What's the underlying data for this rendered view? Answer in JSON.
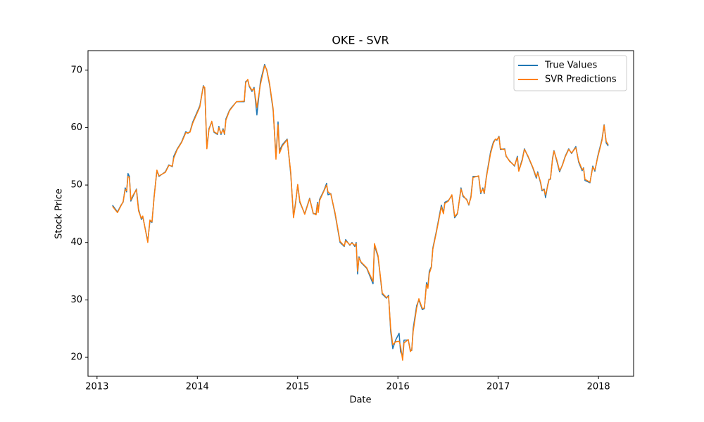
{
  "chart_data": {
    "type": "line",
    "title": "OKE - SVR",
    "xlabel": "Date",
    "ylabel": "Stock Price",
    "x": [
      2013.154,
      2013.204,
      2013.239,
      2013.26,
      2013.281,
      2013.295,
      2013.309,
      2013.323,
      2013.337,
      2013.358,
      2013.393,
      2013.414,
      2013.442,
      2013.456,
      2013.506,
      2013.527,
      2013.548,
      2013.569,
      2013.597,
      2013.618,
      2013.681,
      2013.716,
      2013.751,
      2013.765,
      2013.8,
      2013.843,
      2013.885,
      2013.906,
      2013.927,
      2013.955,
      2014.025,
      2014.06,
      2014.074,
      2014.095,
      2014.116,
      2014.144,
      2014.166,
      2014.201,
      2014.215,
      2014.236,
      2014.257,
      2014.271,
      2014.285,
      2014.32,
      2014.341,
      2014.39,
      2014.468,
      2014.482,
      2014.503,
      2014.517,
      2014.545,
      2014.566,
      2014.594,
      2014.629,
      2014.671,
      2014.692,
      2014.72,
      2014.756,
      2014.784,
      2014.805,
      2014.819,
      2014.847,
      2014.896,
      2014.931,
      2014.959,
      2014.98,
      2015.001,
      2015.022,
      2015.071,
      2015.12,
      2015.156,
      2015.184,
      2015.198,
      2015.205,
      2015.219,
      2015.261,
      2015.289,
      2015.303,
      2015.331,
      2015.373,
      2015.423,
      2015.465,
      2015.479,
      2015.521,
      2015.542,
      2015.57,
      2015.584,
      2015.598,
      2015.612,
      2015.633,
      2015.689,
      2015.752,
      2015.766,
      2015.802,
      2015.844,
      2015.886,
      2015.907,
      2015.928,
      2015.949,
      2015.977,
      2016.012,
      2016.026,
      2016.047,
      2016.061,
      2016.103,
      2016.124,
      2016.138,
      2016.152,
      2016.187,
      2016.209,
      2016.243,
      2016.264,
      2016.285,
      2016.299,
      2016.313,
      2016.334,
      2016.348,
      2016.384,
      2016.433,
      2016.454,
      2016.468,
      2016.503,
      2016.538,
      2016.566,
      2016.594,
      2016.629,
      2016.65,
      2016.686,
      2016.707,
      2016.728,
      2016.749,
      2016.805,
      2016.826,
      2016.847,
      2016.861,
      2016.882,
      2016.924,
      2016.952,
      2016.973,
      2016.987,
      2017.008,
      2017.022,
      2017.065,
      2017.079,
      2017.114,
      2017.163,
      2017.191,
      2017.205,
      2017.24,
      2017.261,
      2017.296,
      2017.345,
      2017.38,
      2017.394,
      2017.423,
      2017.437,
      2017.458,
      2017.472,
      2017.493,
      2017.507,
      2017.521,
      2017.542,
      2017.556,
      2017.584,
      2017.612,
      2017.64,
      2017.668,
      2017.703,
      2017.731,
      2017.774,
      2017.802,
      2017.837,
      2017.851,
      2017.865,
      2017.915,
      2017.943,
      2017.964,
      2017.992,
      2018.035,
      2018.056,
      2018.077,
      2018.098
    ],
    "series": [
      {
        "name": "True Values",
        "color": "#1f77b4",
        "values": [
          46.5,
          45.3,
          46.5,
          47,
          49.5,
          48.8,
          52,
          51.5,
          47.2,
          48,
          49.3,
          45.8,
          44,
          44.5,
          40.2,
          43.7,
          43.5,
          48,
          52.5,
          51.5,
          52.3,
          53.5,
          53.2,
          55,
          56.3,
          57.5,
          59.3,
          59,
          59.3,
          61,
          63.8,
          67.3,
          66.7,
          56.5,
          59.8,
          61,
          59.2,
          58.8,
          60.2,
          58.8,
          59.8,
          58.8,
          61.5,
          63,
          63.5,
          64.5,
          64.5,
          68,
          68.3,
          67.2,
          66.3,
          67,
          62.2,
          68,
          71,
          70,
          67.5,
          63,
          55,
          61,
          56,
          57,
          58,
          52,
          44.5,
          47,
          50,
          47,
          45,
          47.7,
          45,
          45,
          47,
          45.5,
          47.5,
          49,
          50.3,
          48.3,
          48.5,
          45,
          40,
          39.3,
          40.5,
          39.5,
          40,
          39.3,
          40,
          34.5,
          37.5,
          36.5,
          35.5,
          32.8,
          39.5,
          37.5,
          31,
          30.3,
          30.8,
          24.5,
          21.5,
          23,
          24.2,
          21,
          20.2,
          23,
          23,
          21.3,
          21.2,
          25,
          29,
          30,
          28.3,
          28.5,
          33,
          32.3,
          35,
          35.8,
          39,
          42,
          46.5,
          45.2,
          47,
          47.3,
          48.2,
          44.3,
          45,
          49.5,
          48,
          47.5,
          46.5,
          48,
          51.5,
          51.5,
          48.5,
          49.5,
          48.5,
          51.5,
          55.8,
          57.5,
          58,
          57.8,
          58.5,
          56.2,
          56.3,
          55,
          54.2,
          53.3,
          55,
          52.5,
          54.5,
          56.3,
          55,
          53,
          51.2,
          52.3,
          50.3,
          49,
          49.3,
          47.8,
          50,
          51,
          51,
          54.7,
          56,
          54.2,
          52.3,
          53.5,
          55,
          56.3,
          55.5,
          56.7,
          54,
          52.5,
          53,
          50.8,
          50.4,
          53.3,
          52.4,
          55,
          58,
          60.5,
          57.3,
          56.8
        ]
      },
      {
        "name": "SVR Predictions",
        "color": "#ff7f0e",
        "values": [
          46.3,
          45.2,
          46.4,
          47.1,
          49.2,
          49,
          51.5,
          51.3,
          47.4,
          48.2,
          49.2,
          45.5,
          44.2,
          44.6,
          40,
          43.9,
          43.6,
          47.8,
          52.6,
          51.6,
          52.2,
          53.4,
          53.3,
          54.7,
          56.2,
          57.4,
          59.1,
          59.1,
          59.2,
          60.8,
          63.6,
          67.2,
          67,
          56.3,
          59.6,
          61.1,
          59.3,
          58.9,
          60,
          59,
          59.6,
          58.9,
          61.3,
          62.9,
          63.4,
          64.5,
          64.6,
          67.8,
          68.4,
          67.3,
          66.5,
          66.8,
          63.5,
          67.5,
          70.8,
          70.1,
          67.7,
          63.3,
          54.5,
          60.5,
          55.5,
          56.8,
          57.9,
          52.3,
          44.3,
          46.8,
          50.1,
          47.2,
          44.9,
          47.6,
          45.1,
          44.8,
          46.8,
          45.2,
          47.3,
          48.9,
          50,
          48.8,
          48.4,
          45.2,
          40.2,
          39.4,
          40.3,
          39.6,
          39.9,
          39.5,
          39.8,
          35,
          37.3,
          36.6,
          35.6,
          33.2,
          39.8,
          37.7,
          31.2,
          30.4,
          30.6,
          25,
          22.2,
          22.7,
          22.8,
          22,
          19.5,
          22.5,
          23.1,
          21,
          21.3,
          24.5,
          28.6,
          30.2,
          28.5,
          28.6,
          32.7,
          32,
          34.6,
          35.7,
          38.8,
          41.8,
          46.2,
          45,
          46.8,
          47.2,
          48.3,
          44.5,
          45.1,
          49.3,
          48.2,
          47.4,
          46.6,
          47.8,
          51.3,
          51.6,
          48.7,
          49.3,
          48.6,
          51.3,
          55.5,
          57.3,
          58,
          57.9,
          58.4,
          56.3,
          56.2,
          55.1,
          54.1,
          53.4,
          54.8,
          52.4,
          54.3,
          56.2,
          55.1,
          53.1,
          51.4,
          52.1,
          50.5,
          49.2,
          49.1,
          48.3,
          49.8,
          50.9,
          51.1,
          54.5,
          55.9,
          54.4,
          52.5,
          53.4,
          54.9,
          56.2,
          55.6,
          56.5,
          54.2,
          52.7,
          52.9,
          51,
          50.5,
          53.1,
          52.6,
          54.8,
          57.8,
          60.4,
          57.6,
          57
        ]
      }
    ],
    "xlim": [
      2012.91,
      2018.35
    ],
    "xticks": [
      2013,
      2014,
      2015,
      2016,
      2017,
      2018
    ],
    "ylim": [
      16.7,
      73.4
    ],
    "yticks": [
      20,
      30,
      40,
      50,
      60,
      70
    ],
    "grid": false,
    "legend": "upper right"
  }
}
